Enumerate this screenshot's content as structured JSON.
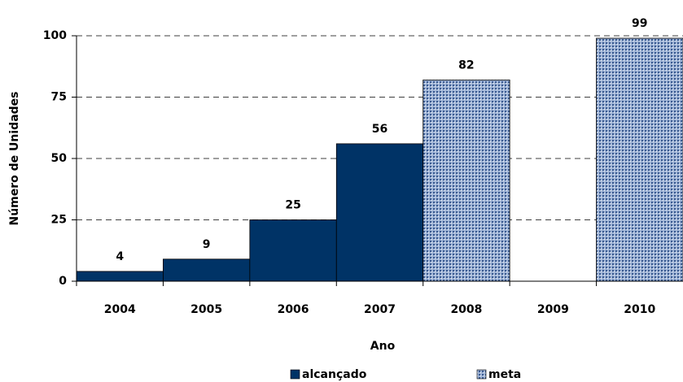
{
  "chart_data": {
    "type": "bar",
    "x_label": "Ano",
    "y_label": "Número de Unidades",
    "categories": [
      "2004",
      "2005",
      "2006",
      "2007",
      "2008",
      "2009",
      "2010"
    ],
    "series": [
      {
        "name": "alcançado",
        "color": "#003366",
        "values": [
          4,
          9,
          25,
          56,
          null,
          null,
          null
        ]
      },
      {
        "name": "meta",
        "color": "#9fb4d6",
        "values": [
          null,
          null,
          null,
          null,
          82,
          null,
          99
        ]
      }
    ],
    "ylim": [
      0,
      100
    ],
    "yticks": [
      0,
      25,
      50,
      75,
      100
    ],
    "grid": true,
    "legend": "bottom"
  }
}
